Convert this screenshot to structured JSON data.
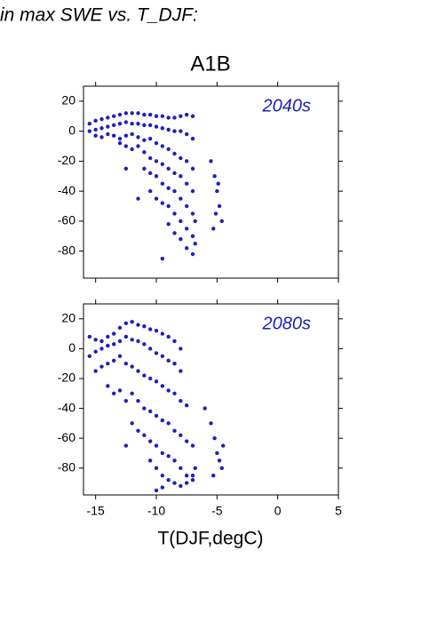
{
  "header": "in max SWE vs. T_DJF:",
  "chart_data": [
    {
      "type": "scatter",
      "title": "A1B",
      "annotation": "2040s",
      "color": "#2020b8",
      "xlim": [
        -16,
        5
      ],
      "ylim": [
        -98,
        30
      ],
      "xticks": [
        -15,
        -10,
        -5,
        0,
        5
      ],
      "yticks": [
        20,
        0,
        -20,
        -40,
        -60,
        -80
      ],
      "x": [
        -15.5,
        -15,
        -14.5,
        -14,
        -13.5,
        -13,
        -12.5,
        -12,
        -11.5,
        -11,
        -10.5,
        -10,
        -9.5,
        -9,
        -8.5,
        -8,
        -7.5,
        -7,
        -15.5,
        -15,
        -14.5,
        -14,
        -13.5,
        -13,
        -12.5,
        -12,
        -11.5,
        -11,
        -10.5,
        -10,
        -9.5,
        -9,
        -8.5,
        -8,
        -7.5,
        -7,
        -15,
        -14.5,
        -14,
        -13.5,
        -13,
        -12.5,
        -12,
        -11.5,
        -11,
        -10.5,
        -10,
        -9.5,
        -9,
        -8.5,
        -8,
        -7.5,
        -7,
        -13,
        -12.5,
        -12,
        -11.5,
        -11,
        -10.5,
        -10,
        -9.5,
        -9,
        -8.5,
        -8,
        -7.5,
        -7,
        -11,
        -10.5,
        -10,
        -9.5,
        -9,
        -8.5,
        -8,
        -7.5,
        -7,
        -6.8,
        -10.5,
        -10,
        -9.5,
        -9,
        -8.5,
        -8,
        -7.5,
        -7,
        -9,
        -8.5,
        -8,
        -7.5,
        -7,
        -6.8,
        -5.5,
        -5.2,
        -5,
        -4.8,
        -4.6,
        -5.3,
        -5.1,
        -4.9,
        -12.5,
        -11.5,
        -9.5
      ],
      "y": [
        5,
        7,
        8,
        9,
        10,
        11,
        12,
        12,
        12,
        11,
        11,
        10,
        10,
        9,
        9,
        10,
        11,
        10,
        0,
        1,
        2,
        3,
        4,
        5,
        6,
        5,
        5,
        4,
        4,
        3,
        2,
        1,
        0,
        0,
        -2,
        -5,
        -3,
        -4,
        -2,
        -3,
        -5,
        -3,
        -2,
        -4,
        -6,
        -5,
        -8,
        -10,
        -12,
        -15,
        -18,
        -20,
        -25,
        -8,
        -10,
        -12,
        -10,
        -14,
        -18,
        -20,
        -22,
        -25,
        -28,
        -30,
        -35,
        -40,
        -25,
        -28,
        -30,
        -35,
        -38,
        -40,
        -45,
        -50,
        -55,
        -60,
        -40,
        -45,
        -48,
        -50,
        -55,
        -60,
        -65,
        -70,
        -62,
        -68,
        -72,
        -78,
        -82,
        -75,
        -20,
        -30,
        -40,
        -50,
        -60,
        -65,
        -55,
        -35,
        -25,
        -45,
        -85
      ]
    },
    {
      "type": "scatter",
      "annotation": "2080s",
      "color": "#2020b8",
      "x_label": "T(DJF,degC)",
      "xlim": [
        -16,
        5
      ],
      "ylim": [
        -98,
        30
      ],
      "xticks": [
        -15,
        -10,
        -5,
        0,
        5
      ],
      "yticks": [
        20,
        0,
        -20,
        -40,
        -60,
        -80
      ],
      "x": [
        -15.5,
        -15,
        -14.5,
        -14,
        -13.5,
        -13,
        -12.5,
        -12,
        -11.5,
        -11,
        -10.5,
        -10,
        -9.5,
        -9,
        -8.5,
        -8,
        -15.5,
        -15,
        -14.5,
        -14,
        -13.5,
        -13,
        -12.5,
        -12,
        -11.5,
        -11,
        -10.5,
        -10,
        -9.5,
        -9,
        -8.5,
        -8,
        -15,
        -14.5,
        -14,
        -13.5,
        -13,
        -12.5,
        -12,
        -11.5,
        -11,
        -10.5,
        -10,
        -9.5,
        -9,
        -8.5,
        -8,
        -7.5,
        -14,
        -13.5,
        -13,
        -12.5,
        -12,
        -11.5,
        -11,
        -10.5,
        -10,
        -9.5,
        -9,
        -8.5,
        -8,
        -7.5,
        -7,
        -12,
        -11.5,
        -11,
        -10.5,
        -10,
        -9.5,
        -9,
        -8.5,
        -8,
        -7.5,
        -7,
        -10.5,
        -10,
        -9.5,
        -9,
        -8.5,
        -8,
        -7.5,
        -7,
        -6.8,
        -5.5,
        -5.2,
        -5,
        -4.8,
        -4.6,
        -5.3,
        -4.5,
        -12.5,
        -10,
        -9.5,
        -6
      ],
      "y": [
        8,
        6,
        5,
        8,
        10,
        14,
        17,
        18,
        16,
        15,
        13,
        12,
        10,
        8,
        5,
        0,
        -5,
        -2,
        0,
        2,
        3,
        5,
        8,
        6,
        5,
        3,
        0,
        -3,
        -5,
        -8,
        -10,
        -15,
        -15,
        -12,
        -10,
        -8,
        -5,
        -10,
        -12,
        -15,
        -18,
        -20,
        -22,
        -25,
        -28,
        -30,
        -35,
        -38,
        -25,
        -30,
        -28,
        -35,
        -30,
        -35,
        -40,
        -42,
        -45,
        -48,
        -50,
        -55,
        -58,
        -62,
        -65,
        -50,
        -55,
        -58,
        -62,
        -65,
        -70,
        -72,
        -75,
        -80,
        -85,
        -88,
        -75,
        -80,
        -85,
        -88,
        -90,
        -92,
        -90,
        -85,
        -80,
        -50,
        -60,
        -70,
        -75,
        -80,
        -85,
        -65,
        -65,
        -95,
        -93,
        -40
      ]
    }
  ]
}
